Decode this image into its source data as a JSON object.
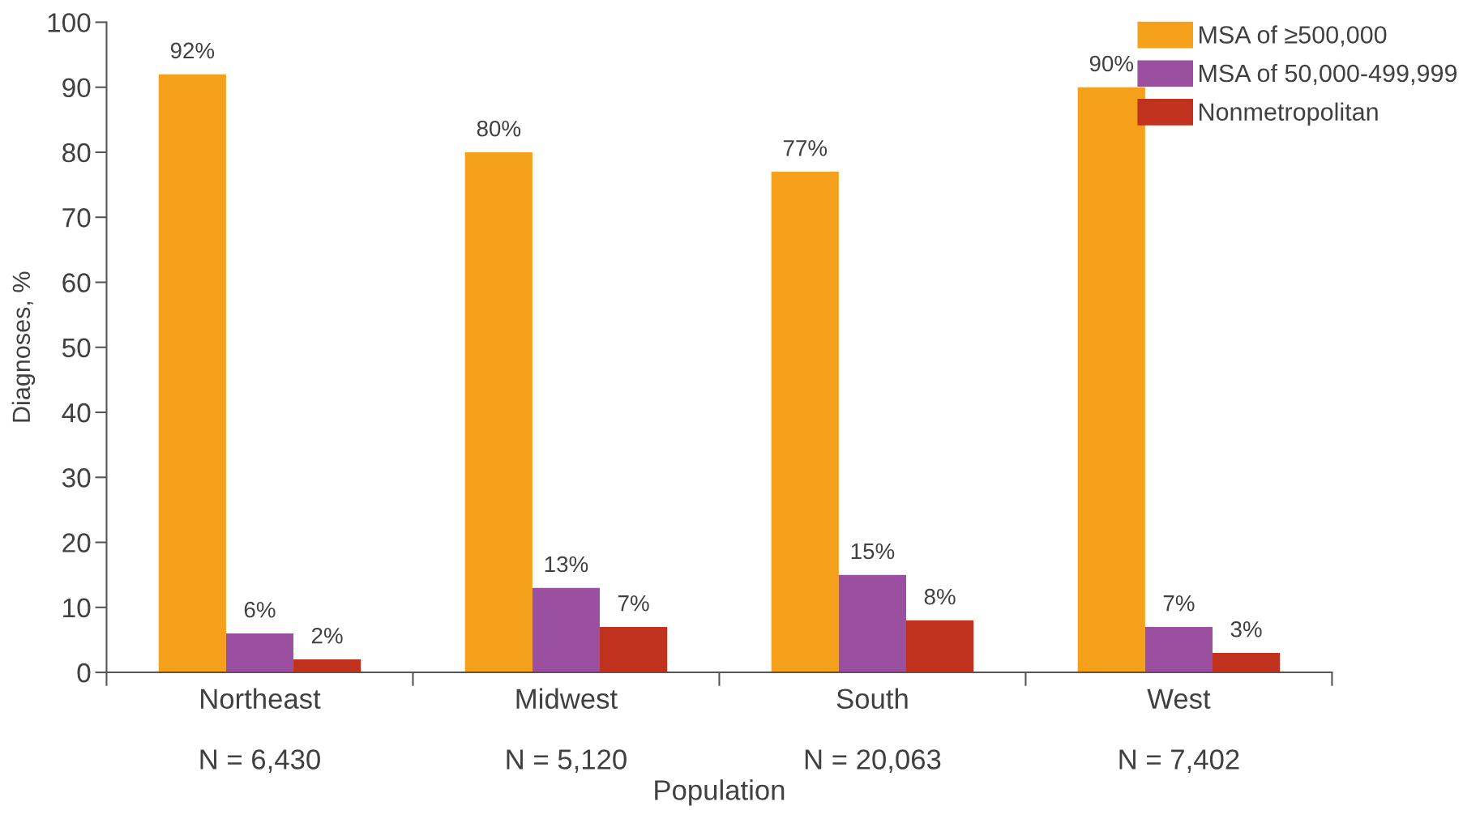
{
  "chart_data": {
    "type": "bar",
    "xlabel": "Population",
    "ylabel": "Diagnoses, %",
    "categories": [
      "Northeast\n\nN = 6,430",
      "Midwest\n\nN = 5,120",
      "South\n\nN = 20,063",
      "West\n\nN = 7,402"
    ],
    "series": [
      {
        "name": "MSA of ≥500,000",
        "color": "#f5a01a",
        "values": [
          92,
          80,
          77,
          90
        ],
        "value_labels": [
          "92%",
          "80%",
          "77%",
          "90%"
        ]
      },
      {
        "name": "MSA of 50,000-499,999",
        "color": "#9b4f9f",
        "values": [
          6,
          13,
          15,
          7
        ],
        "value_labels": [
          "6%",
          "13%",
          "15%",
          "7%"
        ]
      },
      {
        "name": "Nonmetropolitan",
        "color": "#c0311e",
        "values": [
          2,
          7,
          8,
          3
        ],
        "value_labels": [
          "2%",
          "7%",
          "8%",
          "3%"
        ]
      }
    ],
    "ylim": [
      0,
      100
    ],
    "yticks": [
      0,
      10,
      20,
      30,
      40,
      50,
      60,
      70,
      80,
      90,
      100
    ],
    "grid": false,
    "legend": "top right"
  }
}
